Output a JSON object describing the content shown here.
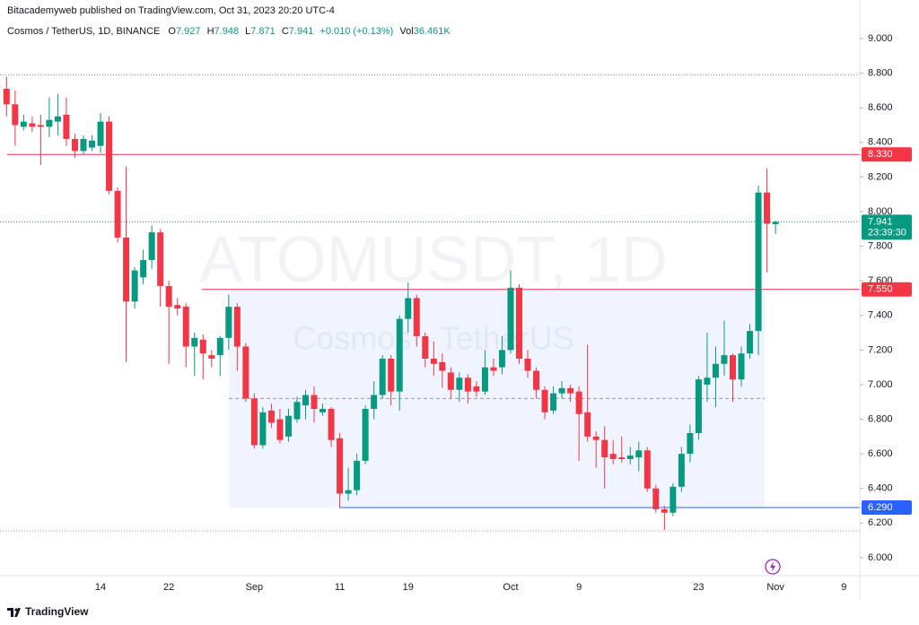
{
  "header": {
    "publisher": "Bitacademyweb published on TradingView.com, Oct 31, 2023 20:20 UTC-4",
    "branding": "TradingView"
  },
  "chart_data": {
    "type": "candlestick",
    "title": "Cosmos / TetherUS, 1D, BINANCE",
    "legend": {
      "open_label": "O",
      "high_label": "H",
      "low_label": "L",
      "close_label": "C",
      "change": "+0.010 (+0.13%)",
      "volume_label": "Vol",
      "volume": "36.461K"
    },
    "watermark": [
      "ATOMUSDT, 1D",
      "Cosmos - TetherUS"
    ],
    "countdown": "23:39:30",
    "up_color": "#089981",
    "down_color": "#f23645",
    "categories": [
      null,
      null,
      null,
      null,
      null,
      null,
      null,
      null,
      null,
      null,
      null,
      "14",
      null,
      null,
      null,
      null,
      null,
      null,
      null,
      "22",
      null,
      null,
      null,
      null,
      null,
      null,
      null,
      null,
      null,
      "Sep",
      null,
      null,
      null,
      null,
      null,
      null,
      null,
      null,
      null,
      "11",
      null,
      null,
      null,
      null,
      null,
      null,
      null,
      "19",
      null,
      null,
      null,
      null,
      null,
      null,
      null,
      null,
      null,
      null,
      null,
      "Oct",
      null,
      null,
      null,
      null,
      null,
      null,
      null,
      "9",
      null,
      null,
      null,
      null,
      null,
      null,
      null,
      null,
      null,
      null,
      null,
      null,
      null,
      "23",
      null,
      null,
      null,
      null,
      null,
      null,
      null,
      null,
      "Nov",
      null,
      null,
      null,
      null,
      null,
      null,
      null,
      "9",
      null,
      null,
      null
    ],
    "open": [
      8.71,
      8.62,
      8.49,
      8.51,
      8.5,
      8.49,
      8.52,
      8.56,
      8.42,
      8.35,
      8.37,
      8.38,
      8.52,
      8.12,
      7.85,
      7.48,
      7.62,
      7.72,
      7.88,
      7.57,
      7.46,
      7.45,
      7.22,
      7.26,
      7.17,
      7.17,
      7.27,
      7.45,
      7.22,
      6.92,
      6.65,
      6.85,
      6.8,
      6.7,
      6.8,
      6.88,
      6.94,
      6.84,
      6.86,
      6.69,
      6.37,
      6.39,
      6.56,
      6.86,
      6.94,
      7.15,
      6.96,
      7.38,
      7.5,
      7.28,
      7.15,
      7.13,
      7.07,
      6.97,
      7.04,
      6.99,
      6.96,
      7.1,
      7.1,
      7.2,
      7.56,
      7.15,
      7.08,
      6.97,
      6.85,
      6.95,
      6.98,
      6.96,
      6.84,
      6.7,
      6.68,
      6.6,
      6.58,
      6.57,
      6.58,
      6.62,
      6.4,
      6.28,
      6.26,
      6.41,
      6.6,
      6.72,
      7.0,
      7.04,
      7.12,
      7.17,
      7.03,
      7.18,
      7.31,
      8.11,
      7.927,
      null,
      null,
      null,
      null,
      null,
      null,
      null,
      null,
      null,
      null,
      null
    ],
    "high": [
      8.78,
      8.7,
      8.56,
      8.55,
      8.56,
      8.66,
      8.68,
      8.66,
      8.45,
      8.44,
      8.44,
      8.57,
      8.55,
      8.14,
      8.26,
      7.68,
      7.78,
      7.92,
      7.9,
      7.6,
      7.5,
      7.47,
      7.3,
      7.29,
      7.2,
      7.28,
      7.52,
      7.47,
      7.24,
      6.95,
      6.87,
      6.89,
      6.86,
      6.86,
      6.93,
      6.97,
      6.99,
      6.89,
      6.87,
      6.72,
      6.52,
      6.6,
      6.88,
      7.02,
      7.17,
      7.17,
      7.4,
      7.59,
      7.52,
      7.3,
      7.25,
      7.18,
      7.1,
      7.07,
      7.06,
      7.02,
      7.2,
      7.15,
      7.28,
      7.66,
      7.58,
      7.2,
      7.1,
      6.99,
      6.99,
      7.02,
      7.0,
      6.99,
      7.23,
      6.73,
      6.76,
      6.68,
      6.7,
      6.64,
      6.67,
      6.64,
      6.42,
      6.3,
      6.43,
      6.64,
      6.77,
      7.05,
      7.3,
      7.22,
      7.37,
      7.18,
      7.22,
      7.35,
      8.15,
      8.25,
      7.948,
      null,
      null,
      null,
      null,
      null,
      null,
      null,
      null,
      null,
      null,
      null
    ],
    "low": [
      8.55,
      8.38,
      8.47,
      8.46,
      8.27,
      8.43,
      8.44,
      8.38,
      8.31,
      8.33,
      8.35,
      8.34,
      8.1,
      7.82,
      7.13,
      7.44,
      7.58,
      7.67,
      7.45,
      7.12,
      7.4,
      7.1,
      7.05,
      7.03,
      7.1,
      7.05,
      7.2,
      7.08,
      6.9,
      6.63,
      6.63,
      6.75,
      6.66,
      6.67,
      6.78,
      6.8,
      6.78,
      6.82,
      6.64,
      6.29,
      6.33,
      6.36,
      6.54,
      6.8,
      6.92,
      6.88,
      6.85,
      7.3,
      7.22,
      7.1,
      7.05,
      6.98,
      6.92,
      6.9,
      6.89,
      6.93,
      6.94,
      7.05,
      7.06,
      7.18,
      7.12,
      7.04,
      6.92,
      6.8,
      6.83,
      6.92,
      6.9,
      6.56,
      6.67,
      6.52,
      6.4,
      6.54,
      6.55,
      6.54,
      6.5,
      6.38,
      6.26,
      6.16,
      6.24,
      6.38,
      6.55,
      6.68,
      6.9,
      6.87,
      7.05,
      6.9,
      6.99,
      7.15,
      7.17,
      7.65,
      7.871,
      null,
      null,
      null,
      null,
      null,
      null,
      null,
      null,
      null,
      null,
      null
    ],
    "close": [
      8.62,
      8.5,
      8.52,
      8.49,
      8.49,
      8.53,
      8.55,
      8.42,
      8.35,
      8.42,
      8.41,
      8.52,
      8.12,
      7.85,
      7.48,
      7.66,
      7.72,
      7.88,
      7.57,
      7.45,
      7.44,
      7.22,
      7.27,
      7.18,
      7.15,
      7.27,
      7.45,
      7.22,
      6.92,
      6.65,
      6.84,
      6.78,
      6.68,
      6.82,
      6.9,
      6.94,
      6.86,
      6.86,
      6.68,
      6.37,
      6.39,
      6.56,
      6.86,
      6.94,
      7.15,
      6.96,
      7.38,
      7.5,
      7.28,
      7.15,
      7.12,
      7.08,
      6.97,
      7.04,
      6.96,
      6.96,
      7.1,
      7.08,
      7.2,
      7.56,
      7.15,
      7.08,
      6.97,
      6.84,
      6.95,
      6.98,
      6.95,
      6.83,
      6.7,
      6.68,
      6.58,
      6.57,
      6.57,
      6.59,
      6.62,
      6.4,
      6.28,
      6.26,
      6.41,
      6.6,
      6.72,
      7.03,
      7.04,
      7.12,
      7.17,
      7.03,
      7.18,
      7.31,
      8.11,
      7.93,
      7.941,
      null,
      null,
      null,
      null,
      null,
      null,
      null,
      null,
      null,
      null,
      null
    ],
    "ylim": [
      5.896,
      9.088
    ],
    "yticks": [
      {
        "value": 6.0,
        "label": "6.000"
      },
      {
        "value": 6.2,
        "label": "6.200"
      },
      {
        "value": 6.4,
        "label": "6.400"
      },
      {
        "value": 6.6,
        "label": "6.600"
      },
      {
        "value": 6.8,
        "label": "6.800"
      },
      {
        "value": 7.0,
        "label": "7.000"
      },
      {
        "value": 7.2,
        "label": "7.200"
      },
      {
        "value": 7.4,
        "label": "7.400"
      },
      {
        "value": 7.6,
        "label": "7.600"
      },
      {
        "value": 7.8,
        "label": "7.800"
      },
      {
        "value": 8.0,
        "label": "8.000"
      },
      {
        "value": 8.2,
        "label": "8.200"
      },
      {
        "value": 8.4,
        "label": "8.400"
      },
      {
        "value": 8.6,
        "label": "8.600"
      },
      {
        "value": 8.8,
        "label": "8.800"
      },
      {
        "value": 9.0,
        "label": "9.000"
      }
    ],
    "grid": false,
    "levels": [
      {
        "value": 8.33,
        "label": "8.330",
        "color": "#f23645"
      },
      {
        "value": 7.55,
        "label": "7.550",
        "color": "#f23645"
      },
      {
        "value": 6.29,
        "label": "6.290",
        "color": "#2962ff"
      }
    ],
    "box_mid": 6.92,
    "guides": [
      8.79,
      6.155
    ]
  }
}
